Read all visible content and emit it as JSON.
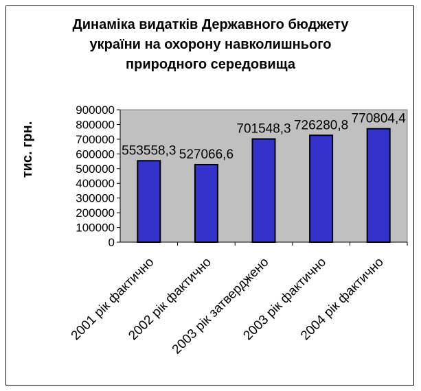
{
  "chart_data": {
    "type": "bar",
    "title_lines": [
      "Динаміка видатків Державного бюджету",
      "україни на охорону навколишнього",
      "природного середовища"
    ],
    "ylabel": "тис. грн.",
    "xlabel": "",
    "categories": [
      "2001 рік фактично",
      "2002 рік фактично",
      "2003 рік затверджено",
      "2003 рік фактично",
      "2004 рік фактично"
    ],
    "values": [
      553558.3,
      527066.6,
      701548.3,
      726280.8,
      770804.4
    ],
    "data_labels": [
      "553558,3",
      "527066,6",
      "701548,3",
      "726280,8",
      "770804,4"
    ],
    "y_ticks": [
      "0",
      "100000",
      "200000",
      "300000",
      "400000",
      "500000",
      "600000",
      "700000",
      "800000",
      "900000"
    ],
    "ylim": [
      0,
      900000
    ],
    "grid": false,
    "legend": "none",
    "colors": {
      "bar": "#3333cc",
      "plot_area": "#c0c0c0",
      "outline": "#000000"
    }
  }
}
